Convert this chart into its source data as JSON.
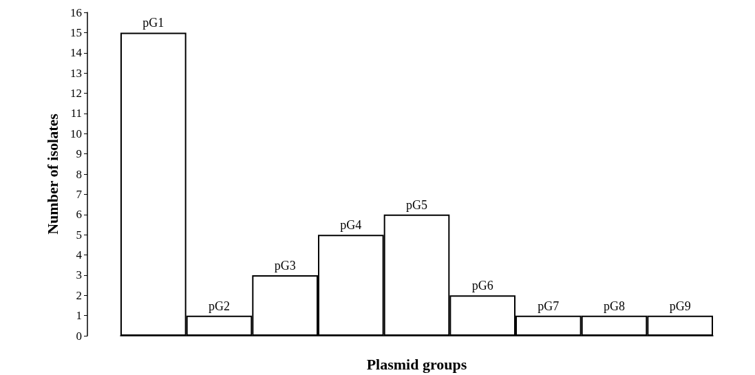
{
  "chart_data": {
    "type": "bar",
    "xlabel": "Plasmid groups",
    "ylabel": "Number of isolates",
    "categories": [
      "pG1",
      "pG2",
      "pG3",
      "pG4",
      "pG5",
      "pG6",
      "pG7",
      "pG8",
      "pG9"
    ],
    "values": [
      15,
      1,
      3,
      5,
      6,
      2,
      1,
      1,
      1
    ],
    "color": "#ffffff",
    "ylim": [
      0,
      16
    ],
    "yticks": [
      0,
      1,
      2,
      3,
      4,
      5,
      6,
      7,
      8,
      9,
      10,
      11,
      12,
      13,
      14,
      15,
      16
    ],
    "grid": false,
    "tick_labels": "y"
  }
}
